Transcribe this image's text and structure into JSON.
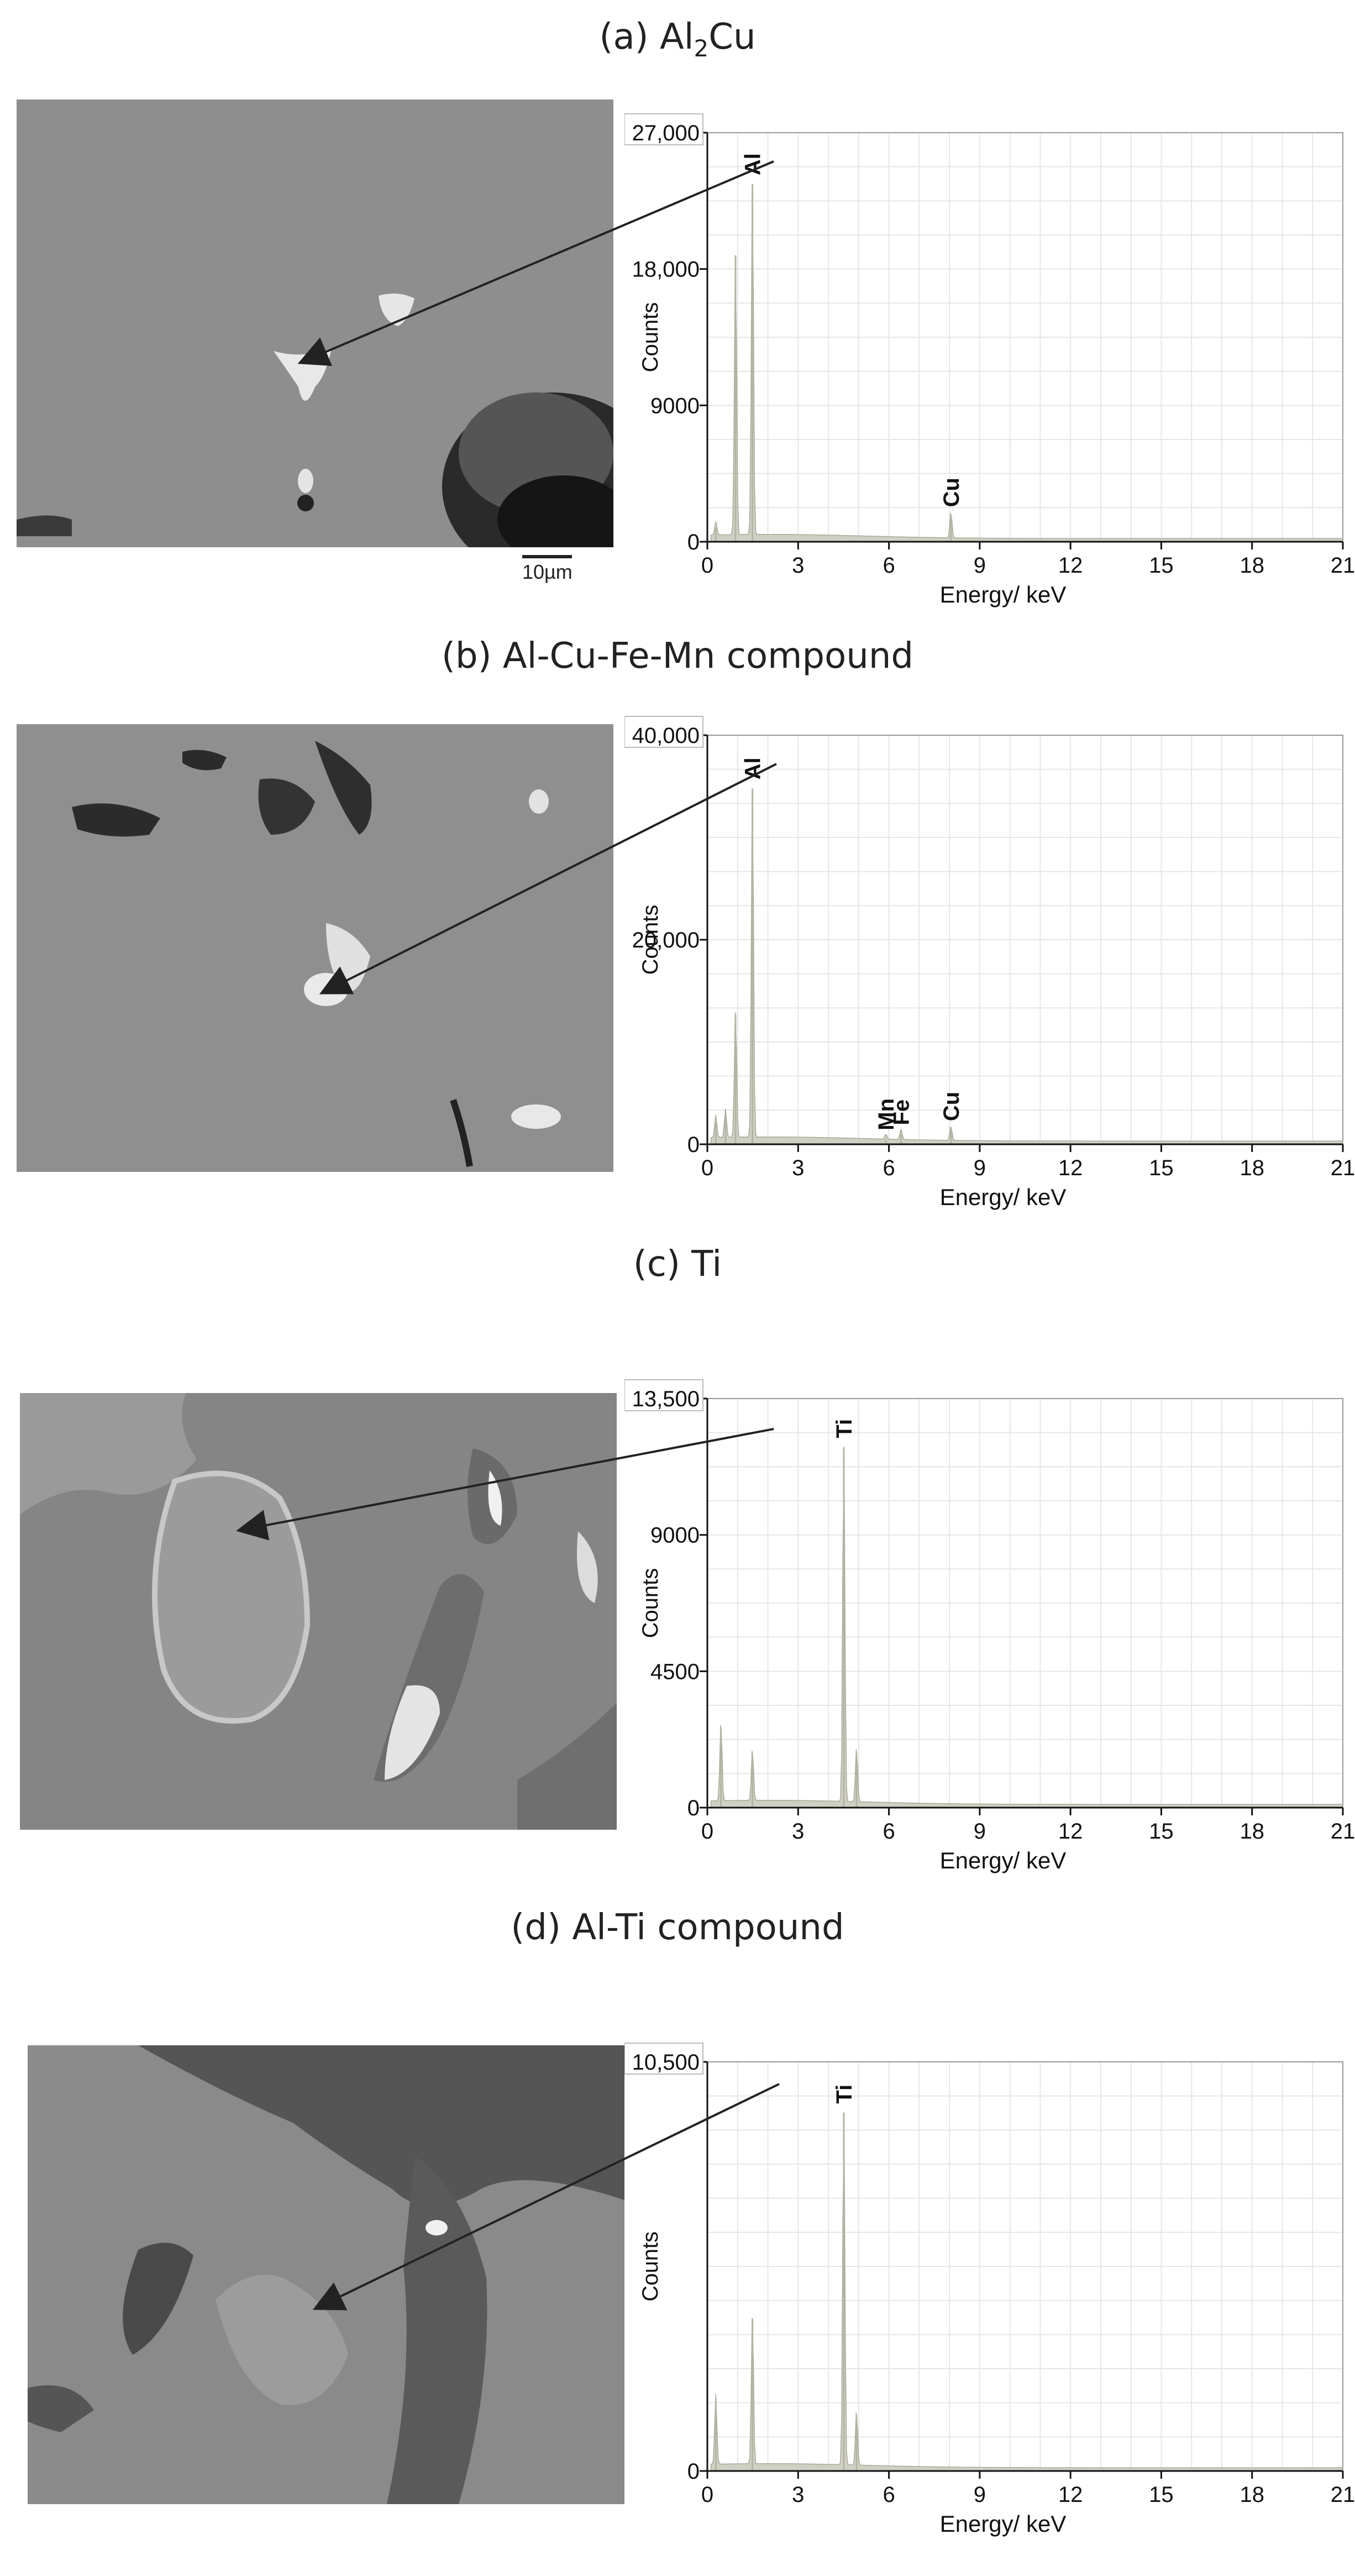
{
  "panels": [
    {
      "title_prefix": "(a) Al",
      "title_sub": "2",
      "title_suffix": "Cu",
      "scale_bar": "10µm"
    },
    {
      "title_prefix": "(b) Al-Cu-Fe-Mn compound",
      "title_sub": "",
      "title_suffix": "",
      "scale_bar": ""
    },
    {
      "title_prefix": "(c) Ti",
      "title_sub": "",
      "title_suffix": "",
      "scale_bar": ""
    },
    {
      "title_prefix": "(d) Al-Ti compound",
      "title_sub": "",
      "title_suffix": "",
      "scale_bar": ""
    }
  ],
  "chart_data": [
    {
      "type": "area",
      "xlabel": "Energy/ keV",
      "ylabel": "Counts",
      "xlim": [
        0,
        21
      ],
      "ylim": [
        0,
        27000
      ],
      "x_ticks": [
        "0",
        "3",
        "6",
        "9",
        "12",
        "15",
        "18",
        "21"
      ],
      "y_ticks": [
        {
          "value": 0,
          "label": "0"
        },
        {
          "value": 9000,
          "label": "9000"
        },
        {
          "value": 18000,
          "label": "18,000"
        },
        {
          "value": 27000,
          "label": "27,000"
        }
      ],
      "grid": true,
      "fill_color": "#cfcfc4",
      "peaks": [
        {
          "x": 0.28,
          "y": 900
        },
        {
          "x": 0.93,
          "y": 18900
        },
        {
          "x": 1.49,
          "y": 23600
        },
        {
          "x": 8.05,
          "y": 1700
        }
      ],
      "peak_labels": [
        {
          "text": "Al",
          "x": 1.49,
          "y": 23600
        },
        {
          "text": "Cu",
          "x": 8.05,
          "y": 1700
        }
      ]
    },
    {
      "type": "area",
      "xlabel": "Energy/ keV",
      "ylabel": "Counts",
      "xlim": [
        0,
        21
      ],
      "ylim": [
        0,
        40000
      ],
      "x_ticks": [
        "0",
        "3",
        "6",
        "9",
        "12",
        "15",
        "18",
        "21"
      ],
      "y_ticks": [
        {
          "value": 0,
          "label": "0"
        },
        {
          "value": 20000,
          "label": "20,000"
        },
        {
          "value": 40000,
          "label": "40,000"
        }
      ],
      "grid": true,
      "fill_color": "#cfcfc4",
      "peaks": [
        {
          "x": 0.28,
          "y": 2200
        },
        {
          "x": 0.6,
          "y": 2800
        },
        {
          "x": 0.93,
          "y": 12700
        },
        {
          "x": 1.49,
          "y": 34800
        },
        {
          "x": 5.9,
          "y": 500
        },
        {
          "x": 6.4,
          "y": 1000
        },
        {
          "x": 8.05,
          "y": 1400
        }
      ],
      "peak_labels": [
        {
          "text": "Al",
          "x": 1.49,
          "y": 34800
        },
        {
          "text": "Mn",
          "x": 5.9,
          "y": 500
        },
        {
          "text": "Fe",
          "x": 6.4,
          "y": 1000
        },
        {
          "text": "Cu",
          "x": 8.05,
          "y": 1400
        }
      ]
    },
    {
      "type": "area",
      "xlabel": "Energy/ keV",
      "ylabel": "Counts",
      "xlim": [
        0,
        21
      ],
      "ylim": [
        0,
        13500
      ],
      "x_ticks": [
        "0",
        "3",
        "6",
        "9",
        "12",
        "15",
        "18",
        "21"
      ],
      "y_ticks": [
        {
          "value": 0,
          "label": "0"
        },
        {
          "value": 4500,
          "label": "4500"
        },
        {
          "value": 9000,
          "label": "9000"
        },
        {
          "value": 13500,
          "label": "13,500"
        }
      ],
      "grid": true,
      "fill_color": "#cfcfc4",
      "peaks": [
        {
          "x": 0.45,
          "y": 2600
        },
        {
          "x": 1.49,
          "y": 1700
        },
        {
          "x": 4.51,
          "y": 11900
        },
        {
          "x": 4.93,
          "y": 1800
        }
      ],
      "peak_labels": [
        {
          "text": "Ti",
          "x": 4.51,
          "y": 11900
        }
      ]
    },
    {
      "type": "area",
      "xlabel": "Energy/ keV",
      "ylabel": "Counts",
      "xlim": [
        0,
        21
      ],
      "ylim": [
        0,
        10500
      ],
      "x_ticks": [
        "0",
        "3",
        "6",
        "9",
        "12",
        "15",
        "18",
        "21"
      ],
      "y_ticks": [
        {
          "value": 0,
          "label": "0"
        },
        {
          "value": 10500,
          "label": "10,500"
        }
      ],
      "grid": true,
      "fill_color": "#cfcfc4",
      "peaks": [
        {
          "x": 0.28,
          "y": 1800
        },
        {
          "x": 1.49,
          "y": 3900
        },
        {
          "x": 4.51,
          "y": 9200
        },
        {
          "x": 4.93,
          "y": 1400
        }
      ],
      "peak_labels": [
        {
          "text": "Ti",
          "x": 4.51,
          "y": 9200
        }
      ]
    }
  ]
}
